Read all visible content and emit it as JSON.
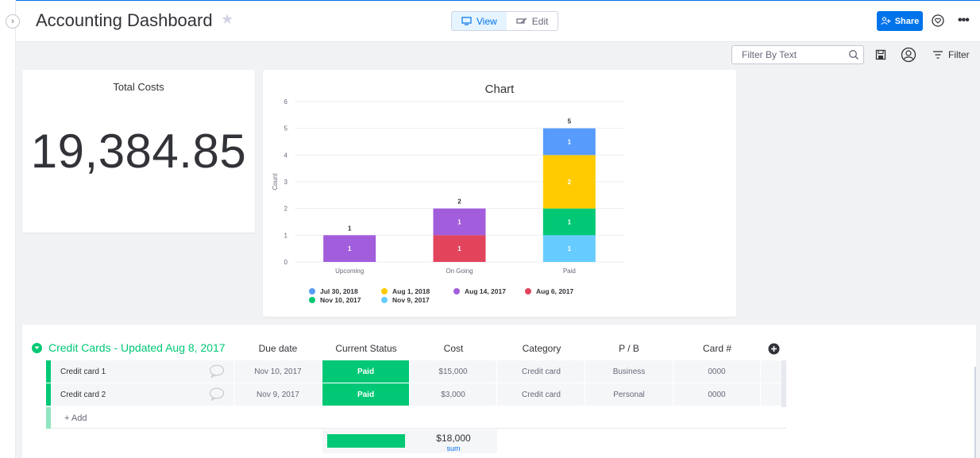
{
  "header": {
    "title": "Accounting Dashboard",
    "view_label": "View",
    "edit_label": "Edit",
    "share_label": "Share"
  },
  "filterbar": {
    "search_placeholder": "Filter By Text",
    "filter_label": "Filter"
  },
  "total_widget": {
    "title": "Total Costs",
    "value": "19,384.85"
  },
  "chart_data": {
    "type": "bar",
    "stacked": true,
    "title": "Chart",
    "xlabel": "",
    "ylabel": "Count",
    "ylim": [
      0,
      6
    ],
    "yticks": [
      0,
      1,
      2,
      3,
      4,
      5,
      6
    ],
    "categories": [
      "Upcoming",
      "On Going",
      "Paid"
    ],
    "totals": [
      1,
      2,
      5
    ],
    "series": [
      {
        "name": "Nov 9, 2017",
        "color": "#66ccff",
        "values": [
          0,
          0,
          1
        ]
      },
      {
        "name": "Aug 6, 2017",
        "color": "#e2445c",
        "values": [
          0,
          1,
          0
        ]
      },
      {
        "name": "Nov 10, 2017",
        "color": "#00c875",
        "values": [
          0,
          0,
          1
        ]
      },
      {
        "name": "Aug 14, 2017",
        "color": "#a25ddc",
        "values": [
          1,
          1,
          0
        ]
      },
      {
        "name": "Aug 1, 2018",
        "color": "#ffcb00",
        "values": [
          0,
          0,
          2
        ]
      },
      {
        "name": "Jul 30, 2018",
        "color": "#579bfc",
        "values": [
          0,
          0,
          1
        ]
      }
    ],
    "legend": [
      {
        "name": "Jul 30, 2018",
        "color": "#579bfc"
      },
      {
        "name": "Aug 1, 2018",
        "color": "#ffcb00"
      },
      {
        "name": "Aug 14, 2017",
        "color": "#a25ddc"
      },
      {
        "name": "Aug 6, 2017",
        "color": "#e2445c"
      },
      {
        "name": "Nov 10, 2017",
        "color": "#00c875"
      },
      {
        "name": "Nov 9, 2017",
        "color": "#66ccff"
      }
    ]
  },
  "board": {
    "group_title": "Credit Cards - Updated Aug 8, 2017",
    "columns": [
      "Due date",
      "Current Status",
      "Cost",
      "Category",
      "P / B",
      "Card #"
    ],
    "rows": [
      {
        "name": "Credit card 1",
        "due": "Nov 10, 2017",
        "status": "Paid",
        "cost": "$15,000",
        "category": "Credit card",
        "pb": "Business",
        "card": "0000"
      },
      {
        "name": "Credit card 2",
        "due": "Nov 9, 2017",
        "status": "Paid",
        "cost": "$3,000",
        "category": "Credit card",
        "pb": "Personal",
        "card": "0000"
      }
    ],
    "add_label": "+ Add",
    "sum_value": "$18,000",
    "sum_label": "sum"
  },
  "colors": {
    "accent": "#0073ea",
    "group": "#00c875"
  }
}
